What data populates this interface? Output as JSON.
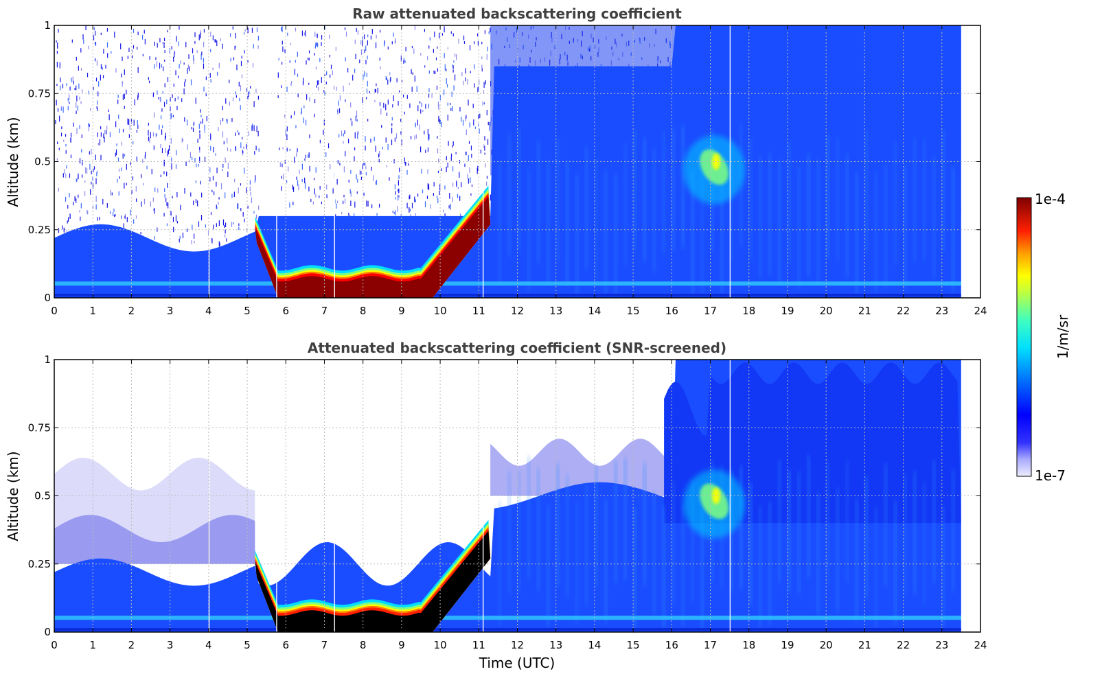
{
  "colors": {
    "field": "#1a4dff",
    "field_deep": "#0000cc",
    "jet": [
      "#00007f",
      "#0000ff",
      "#007fff",
      "#00ffff",
      "#7fff7f",
      "#ffff00",
      "#ff7f00",
      "#ff0000",
      "#7f0000"
    ],
    "low": "#e6e6fa",
    "saturated": "#000000"
  },
  "chart_data": [
    {
      "type": "heatmap",
      "title": "Raw attenuated backscattering coefficient",
      "xlabel": "",
      "ylabel": "Altitude (km)",
      "xlim": [
        0,
        24
      ],
      "ylim": [
        0,
        1
      ],
      "x_ticks": [
        "0",
        "1",
        "2",
        "3",
        "4",
        "5",
        "6",
        "7",
        "8",
        "9",
        "10",
        "11",
        "12",
        "13",
        "14",
        "15",
        "16",
        "17",
        "18",
        "19",
        "20",
        "21",
        "22",
        "23",
        "24"
      ],
      "y_ticks": [
        "0",
        "0.25",
        "0.5",
        "0.75",
        "1"
      ],
      "y_tick_values": [
        0,
        0.25,
        0.5,
        0.75,
        1
      ],
      "data_end_time": 23.5,
      "grid": true,
      "features": [
        {
          "name": "boundary layer",
          "t_start": 0,
          "t_end": 5.2,
          "top_km": 0.27
        },
        {
          "name": "fog layer",
          "t_start": 5.2,
          "t_end": 11.3,
          "base_km": 0.0,
          "top_km": 0.38,
          "peak": "1e-4"
        },
        {
          "name": "elevated plume",
          "t_start": 16.3,
          "t_end": 18.0,
          "alt_km": 0.45,
          "peak": "1e-5"
        }
      ]
    },
    {
      "type": "heatmap",
      "title": "Attenuated backscattering coefficient (SNR-screened)",
      "xlabel": "Time (UTC)",
      "ylabel": "Altitude (km)",
      "xlim": [
        0,
        24
      ],
      "ylim": [
        0,
        1
      ],
      "x_ticks": [
        "0",
        "1",
        "2",
        "3",
        "4",
        "5",
        "6",
        "7",
        "8",
        "9",
        "10",
        "11",
        "12",
        "13",
        "14",
        "15",
        "16",
        "17",
        "18",
        "19",
        "20",
        "21",
        "22",
        "23",
        "24"
      ],
      "y_ticks": [
        "0",
        "0.25",
        "0.5",
        "0.75",
        "1"
      ],
      "y_tick_values": [
        0,
        0.25,
        0.5,
        0.75,
        1
      ],
      "data_end_time": 23.5,
      "grid": true
    }
  ],
  "colorbar": {
    "label": "1/m/sr",
    "max_label": "1e-4",
    "min_label": "1e-7"
  }
}
